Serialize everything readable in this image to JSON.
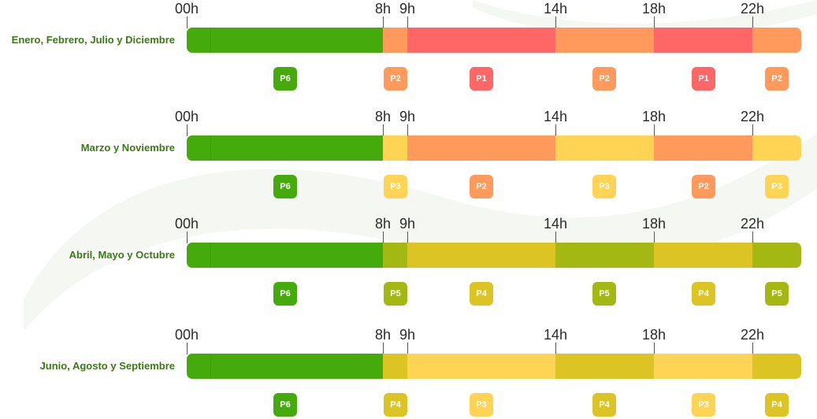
{
  "hours": [
    "00h",
    "8h",
    "9h",
    "14h",
    "18h",
    "22h"
  ],
  "colors": {
    "P1": "#ff6766",
    "P2": "#ff9a5c",
    "P3": "#ffd454",
    "P4": "#dcc424",
    "P5": "#a4b814",
    "P6": "#45aa0c"
  },
  "rows": [
    {
      "label": "Enero, Febrero, Julio y Diciembre",
      "periods": [
        "P6",
        "P2",
        "P1",
        "P2",
        "P1",
        "P2"
      ]
    },
    {
      "label": "Marzo y Noviembre",
      "periods": [
        "P6",
        "P3",
        "P2",
        "P3",
        "P2",
        "P3"
      ]
    },
    {
      "label": "Abril, Mayo y Octubre",
      "periods": [
        "P6",
        "P5",
        "P4",
        "P5",
        "P4",
        "P5"
      ]
    },
    {
      "label": "Junio, Agosto y Septiembre",
      "periods": [
        "P6",
        "P4",
        "P3",
        "P4",
        "P3",
        "P4"
      ]
    }
  ]
}
